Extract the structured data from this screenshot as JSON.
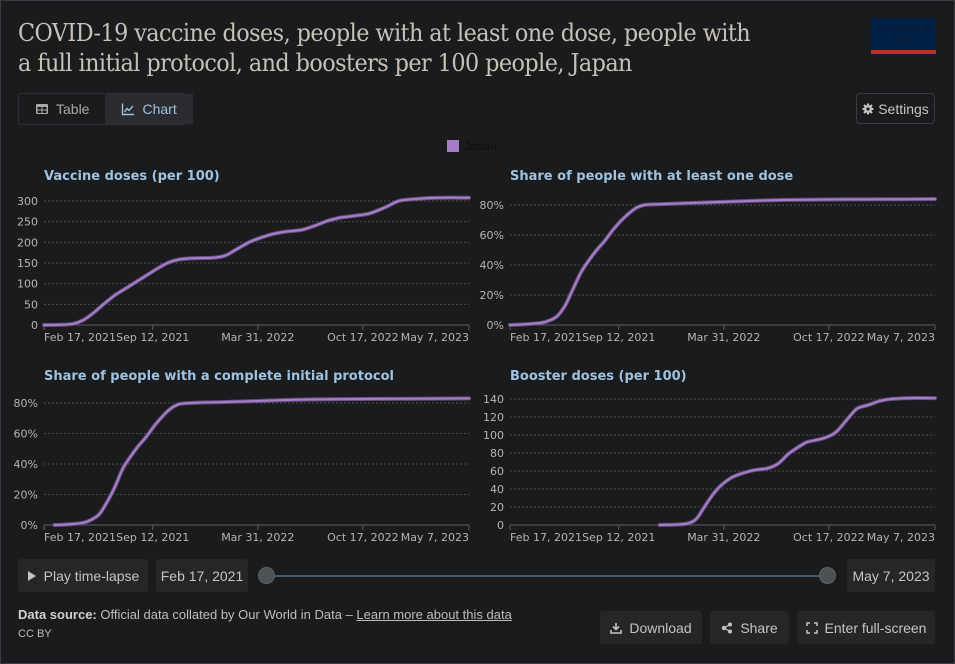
{
  "header": {
    "title": "COVID-19 vaccine doses, people with at least one dose, people with a full initial protocol, and boosters per 100 people, Japan",
    "logo_text": "Our World in Data"
  },
  "tabs": [
    {
      "label": "Table",
      "icon": "table-icon",
      "active": false
    },
    {
      "label": "Chart",
      "icon": "line-chart-icon",
      "active": true
    }
  ],
  "settings_label": "Settings",
  "legend": {
    "label": "Japan",
    "color": "#a67ec8"
  },
  "series_color": "#a67ec8",
  "chart_data": [
    {
      "type": "line",
      "title": "Vaccine doses (per 100)",
      "xlabel": "",
      "ylabel": "",
      "x_ticks": [
        "Feb 17, 2021",
        "Sep 12, 2021",
        "Mar 31, 2022",
        "Oct 17, 2022",
        "May 7, 2023"
      ],
      "x_tick_days": [
        0,
        207,
        407,
        607,
        809
      ],
      "x_range_days": [
        0,
        809
      ],
      "y_ticks": [
        "0",
        "50",
        "100",
        "150",
        "200",
        "250",
        "300"
      ],
      "y_tick_values": [
        0,
        50,
        100,
        150,
        200,
        250,
        300
      ],
      "ylim": [
        0,
        300
      ],
      "grid": true,
      "series": [
        {
          "name": "Japan",
          "x_days": [
            0,
            30,
            55,
            75,
            95,
            115,
            135,
            160,
            185,
            210,
            235,
            255,
            275,
            300,
            325,
            345,
            365,
            390,
            410,
            435,
            460,
            490,
            515,
            540,
            565,
            590,
            620,
            650,
            675,
            700,
            730,
            760,
            790,
            809
          ],
          "values": [
            0,
            0.5,
            3,
            12,
            30,
            52,
            72,
            92,
            112,
            132,
            150,
            158,
            161,
            162,
            163,
            168,
            182,
            200,
            210,
            220,
            226,
            230,
            240,
            252,
            260,
            264,
            270,
            285,
            300,
            304,
            307,
            308,
            308,
            308
          ]
        }
      ]
    },
    {
      "type": "line",
      "title": "Share of people with at least one dose",
      "xlabel": "",
      "ylabel": "",
      "x_ticks": [
        "Feb 17, 2021",
        "Sep 12, 2021",
        "Mar 31, 2022",
        "Oct 17, 2022",
        "May 7, 2023"
      ],
      "x_tick_days": [
        0,
        207,
        407,
        607,
        809
      ],
      "x_range_days": [
        0,
        809
      ],
      "y_ticks": [
        "0%",
        "20%",
        "40%",
        "60%",
        "80%"
      ],
      "y_tick_values": [
        0,
        20,
        40,
        60,
        80
      ],
      "ylim": [
        0,
        80
      ],
      "grid": true,
      "series": [
        {
          "name": "Japan",
          "x_days": [
            0,
            30,
            60,
            75,
            90,
            105,
            120,
            135,
            150,
            165,
            180,
            195,
            210,
            225,
            240,
            255,
            280,
            320,
            400,
            480,
            560,
            640,
            720,
            809
          ],
          "values": [
            0,
            0.5,
            1.5,
            3,
            6,
            13,
            24,
            35,
            43,
            50,
            56,
            63,
            69,
            74,
            78,
            80,
            80.5,
            81,
            82,
            83,
            83.5,
            83.7,
            83.8,
            84
          ]
        }
      ]
    },
    {
      "type": "line",
      "title": "Share of people with a complete initial protocol",
      "xlabel": "",
      "ylabel": "",
      "x_ticks": [
        "Feb 17, 2021",
        "Sep 12, 2021",
        "Mar 31, 2022",
        "Oct 17, 2022",
        "May 7, 2023"
      ],
      "x_tick_days": [
        0,
        207,
        407,
        607,
        809
      ],
      "x_range_days": [
        0,
        809
      ],
      "y_ticks": [
        "0%",
        "20%",
        "40%",
        "60%",
        "80%"
      ],
      "y_tick_values": [
        0,
        20,
        40,
        60,
        80
      ],
      "ylim": [
        0,
        80
      ],
      "grid": true,
      "series": [
        {
          "name": "Japan",
          "x_days": [
            20,
            50,
            75,
            90,
            105,
            120,
            135,
            150,
            165,
            180,
            195,
            210,
            225,
            240,
            255,
            270,
            300,
            360,
            420,
            500,
            600,
            700,
            809
          ],
          "values": [
            0,
            0.5,
            1.5,
            3.5,
            7,
            15,
            25,
            37,
            45,
            52,
            58,
            65,
            71,
            76,
            79,
            79.8,
            80.3,
            80.8,
            81.5,
            82.3,
            82.6,
            82.8,
            83
          ]
        }
      ]
    },
    {
      "type": "line",
      "title": "Booster doses (per 100)",
      "xlabel": "",
      "ylabel": "",
      "x_ticks": [
        "Feb 17, 2021",
        "Sep 12, 2021",
        "Mar 31, 2022",
        "Oct 17, 2022",
        "May 7, 2023"
      ],
      "x_tick_days": [
        0,
        207,
        407,
        607,
        809
      ],
      "x_range_days": [
        0,
        809
      ],
      "y_ticks": [
        "0",
        "20",
        "40",
        "60",
        "80",
        "100",
        "120",
        "140"
      ],
      "y_tick_values": [
        0,
        20,
        40,
        60,
        80,
        100,
        120,
        140
      ],
      "ylim": [
        0,
        140
      ],
      "grid": true,
      "series": [
        {
          "name": "Japan",
          "x_days": [
            285,
            320,
            340,
            355,
            370,
            385,
            400,
            420,
            440,
            465,
            490,
            510,
            530,
            550,
            565,
            580,
            600,
            620,
            640,
            660,
            680,
            690,
            705,
            725,
            760,
            809
          ],
          "values": [
            0,
            0.5,
            2,
            7,
            20,
            33,
            43,
            52,
            57,
            61,
            63,
            68,
            79,
            87,
            92,
            94,
            97,
            103,
            116,
            129,
            133,
            135,
            138,
            140,
            141,
            141
          ]
        }
      ]
    }
  ],
  "timeline": {
    "play_label": "Play time-lapse",
    "start_label": "Feb 17, 2021",
    "end_label": "May 7, 2023",
    "start_fraction": 0,
    "end_fraction": 1
  },
  "footer": {
    "source_prefix": "Data source:",
    "source_text": "Official data collated by Our World in Data –",
    "learn_more_label": "Learn more about this data",
    "license": "CC BY",
    "download_label": "Download",
    "share_label": "Share",
    "fullscreen_label": "Enter full-screen"
  }
}
